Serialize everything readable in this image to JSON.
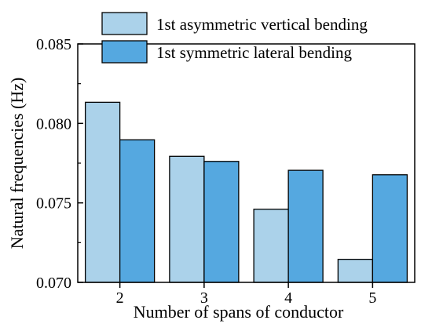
{
  "chart_data": {
    "type": "bar",
    "categories": [
      "2",
      "3",
      "4",
      "5"
    ],
    "series": [
      {
        "name": "1st asymmetric vertical bending",
        "color": "#abd2ea",
        "values": [
          0.08133,
          0.07793,
          0.0746,
          0.07145
        ]
      },
      {
        "name": "1st symmetric lateral bending",
        "color": "#55a8e0",
        "values": [
          0.07897,
          0.07761,
          0.07705,
          0.07677
        ]
      }
    ],
    "xlabel": "Number of spans of conductor",
    "ylabel": "Natural frequencies (Hz)",
    "ylim": [
      0.07,
      0.085
    ],
    "yticks": [
      "0.070",
      "0.075",
      "0.080",
      "0.085"
    ],
    "grid": false,
    "legend_position": "top-right"
  }
}
